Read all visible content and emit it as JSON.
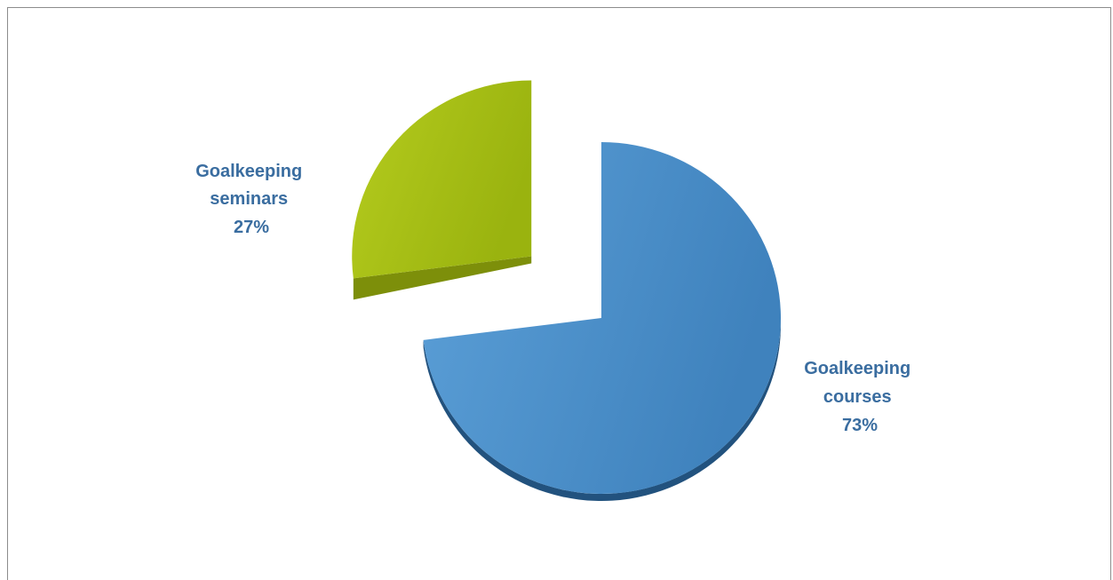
{
  "chart_data": {
    "type": "pie",
    "style": "3d-exploded",
    "slices": [
      {
        "label_lines": [
          "Goalkeeping",
          "courses"
        ],
        "percent_label": "73%",
        "value": 73,
        "color": "#4a8fc9",
        "side_color": "#1f4f7a"
      },
      {
        "label_lines": [
          "Goalkeeping",
          "seminars"
        ],
        "percent_label": "27%",
        "value": 27,
        "color": "#a6bd13",
        "side_color": "#7d8f0a"
      }
    ],
    "label_color": "#3a6da0",
    "legend": "none"
  }
}
